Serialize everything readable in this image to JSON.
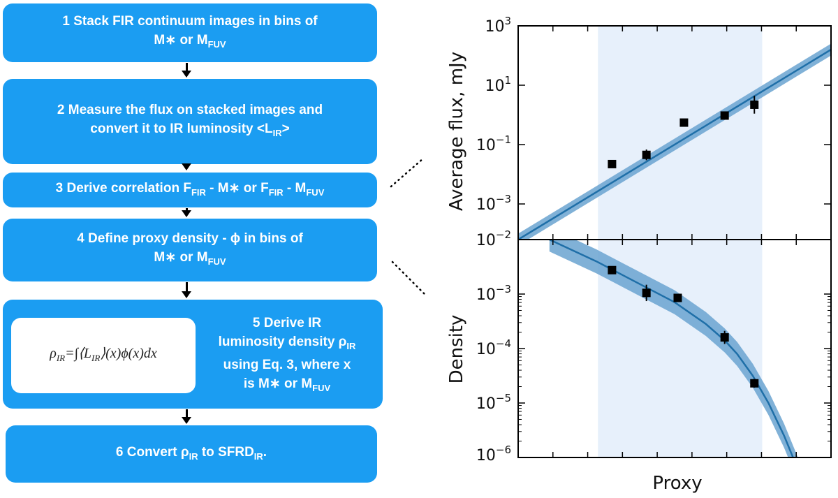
{
  "steps": [
    {
      "line1": "1 Stack FIR continuum images in bins of",
      "line2": "M∗ or MFUV"
    },
    {
      "line1": "2 Measure the flux on stacked images and",
      "line2": "convert it to IR luminosity <LIR>"
    },
    {
      "line1": "3 Derive correlation FFIR - M∗ or FFIR - MFUV"
    },
    {
      "line1": "4 Define proxy density - ϕ in bins of",
      "line2": "M∗ or MFUV"
    },
    {
      "line1": "5 Derive IR",
      "line2": "luminosity density ρIR",
      "line3": "using Eq. 3, where x",
      "line4": "is M∗ or MFUV",
      "formula": "ρIR=∫⟨LIR⟩(x)ϕ(x)dx"
    },
    {
      "line1": "6 Convert ρIR to SFRDIR."
    }
  ],
  "top_panel": {
    "ylabel": "Average flux, mJy",
    "ticks": [
      "10^3",
      "10^1",
      "10^-1",
      "10^-3",
      "10^-2"
    ]
  },
  "bottom_panel": {
    "ylabel": "Density",
    "ticks": [
      "10^-3",
      "10^-4",
      "10^-5",
      "10^-6"
    ]
  },
  "xlabel": "Proxy",
  "chart_data": [
    {
      "type": "scatter",
      "ylabel": "Average flux, mJy",
      "xlabel": "",
      "yscale": "log",
      "ylim_log10": [
        -4.2,
        3.0
      ],
      "xlim": [
        0,
        10
      ],
      "shaded_x": [
        2.55,
        7.8
      ],
      "points": [
        {
          "x": 3.0,
          "y": 0.022,
          "err_log10": 0.05
        },
        {
          "x": 4.1,
          "y": 0.045,
          "err_log10": 0.18
        },
        {
          "x": 5.3,
          "y": 0.55,
          "err_log10": 0.05
        },
        {
          "x": 6.6,
          "y": 0.95,
          "err_log10": 0.1
        },
        {
          "x": 7.55,
          "y": 2.2,
          "err_log10": 0.3
        }
      ],
      "fit_line": {
        "x": [
          0,
          10
        ],
        "y_log10": [
          -4.2,
          2.2
        ],
        "band_log10": 0.2
      }
    },
    {
      "type": "scatter",
      "ylabel": "Density",
      "xlabel": "Proxy",
      "yscale": "log",
      "ylim_log10": [
        -6.0,
        -2.0
      ],
      "xlim": [
        0,
        10
      ],
      "shaded_x": [
        2.55,
        7.8
      ],
      "points": [
        {
          "x": 3.0,
          "y": 0.00275,
          "err_log10": 0.05
        },
        {
          "x": 4.1,
          "y": 0.00105,
          "err_log10": 0.15
        },
        {
          "x": 5.1,
          "y": 0.00085,
          "err_log10": 0.05
        },
        {
          "x": 6.6,
          "y": 0.00016,
          "err_log10": 0.12
        },
        {
          "x": 7.55,
          "y": 2.3e-05,
          "err_log10": 0.08
        }
      ],
      "fit_curve": {
        "x": [
          1.0,
          2.5,
          3.0,
          4.0,
          5.0,
          6.0,
          6.6,
          7.0,
          7.5,
          8.0,
          8.5,
          9.0,
          9.2
        ],
        "y_log10": [
          -2.0,
          -2.4,
          -2.55,
          -2.85,
          -3.15,
          -3.55,
          -3.85,
          -4.1,
          -4.5,
          -5.0,
          -5.6,
          -6.3,
          -6.6
        ],
        "band_log10": 0.22
      }
    }
  ]
}
